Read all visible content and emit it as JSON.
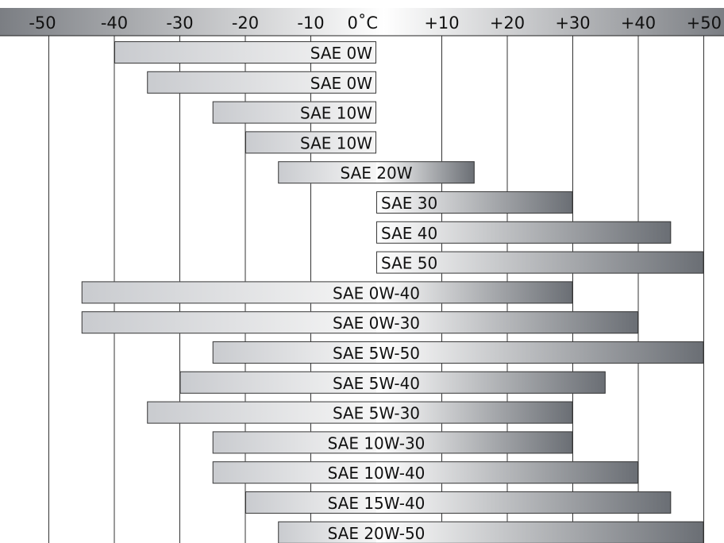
{
  "chart_data": {
    "type": "bar",
    "orientation": "horizontal-range",
    "x_ticks": [
      -50,
      -40,
      -30,
      -20,
      -10,
      0,
      10,
      20,
      30,
      40,
      50
    ],
    "x_tick_labels": [
      "-50",
      "-40",
      "-30",
      "-20",
      "-10",
      "0˚C",
      "+10",
      "+20",
      "+30",
      "+40",
      "+50"
    ],
    "xlim": [
      -52,
      50
    ],
    "grid": true,
    "colors": {
      "cold_bar_start": "#c9cbcf",
      "cold_bar_end": "#f6f6f6",
      "warm_bar_start": "#ffffff",
      "warm_bar_end": "#6a6e74",
      "axis_band_light": "#ffffff",
      "axis_band_dark": "#7b7e83",
      "gridline": "#333333",
      "bar_border": "#3a3a3a"
    },
    "bars": [
      {
        "label": "SAE 0W",
        "min": -40,
        "max": 0
      },
      {
        "label": "SAE 0W",
        "min": -35,
        "max": 0
      },
      {
        "label": "SAE 10W",
        "min": -25,
        "max": 0
      },
      {
        "label": "SAE 10W",
        "min": -20,
        "max": 0
      },
      {
        "label": "SAE 20W",
        "min": -15,
        "max": 15
      },
      {
        "label": "SAE 30",
        "min": 0,
        "max": 30
      },
      {
        "label": "SAE 40",
        "min": 0,
        "max": 45
      },
      {
        "label": "SAE 50",
        "min": 0,
        "max": 50
      },
      {
        "label": "SAE 0W-40",
        "min": -45,
        "max": 30
      },
      {
        "label": "SAE 0W-30",
        "min": -45,
        "max": 40
      },
      {
        "label": "SAE 5W-50",
        "min": -25,
        "max": 50
      },
      {
        "label": "SAE 5W-40",
        "min": -30,
        "max": 35
      },
      {
        "label": "SAE 5W-30",
        "min": -35,
        "max": 30
      },
      {
        "label": "SAE 10W-30",
        "min": -25,
        "max": 30
      },
      {
        "label": "SAE 10W-40",
        "min": -25,
        "max": 40
      },
      {
        "label": "SAE 15W-40",
        "min": -20,
        "max": 45
      },
      {
        "label": "SAE 20W-50",
        "min": -15,
        "max": 50
      }
    ]
  }
}
